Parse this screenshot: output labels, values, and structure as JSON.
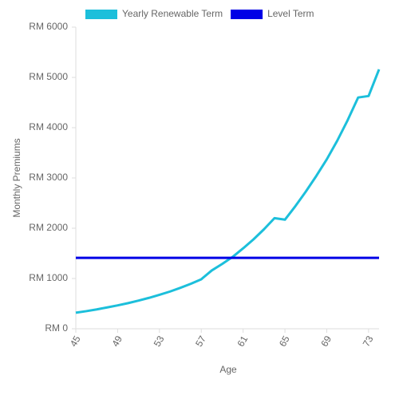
{
  "chart_data": {
    "type": "line",
    "x_label": "Age",
    "y_label": "Monthly Premiums",
    "x": [
      45,
      46,
      47,
      48,
      49,
      50,
      51,
      52,
      53,
      54,
      55,
      56,
      57,
      58,
      59,
      60,
      61,
      62,
      63,
      64,
      65,
      66,
      67,
      68,
      69,
      70,
      71,
      72,
      73,
      74
    ],
    "series": [
      {
        "name": "Yearly Renewable Term",
        "color": "#1cbfdb",
        "values": [
          320,
          350,
          385,
          425,
          465,
          510,
          560,
          615,
          675,
          740,
          815,
          895,
          985,
          1160,
          1290,
          1430,
          1600,
          1780,
          1980,
          2200,
          2170,
          2440,
          2730,
          3040,
          3370,
          3740,
          4150,
          4600,
          4630,
          5160
        ]
      },
      {
        "name": "Level Term",
        "color": "#0000e6",
        "values": [
          1410,
          1410,
          1410,
          1410,
          1410,
          1410,
          1410,
          1410,
          1410,
          1410,
          1410,
          1410,
          1410,
          1410,
          1410,
          1410,
          1410,
          1410,
          1410,
          1410,
          1410,
          1410,
          1410,
          1410,
          1410,
          1410,
          1410,
          1410,
          1410,
          1410
        ]
      }
    ],
    "xlim": [
      45,
      74
    ],
    "xticks": [
      45,
      49,
      53,
      57,
      61,
      65,
      69,
      73
    ],
    "ylim": [
      0,
      6000
    ],
    "yticks": [
      {
        "value": 0,
        "label": "RM 0"
      },
      {
        "value": 1000,
        "label": "RM 1000"
      },
      {
        "value": 2000,
        "label": "RM 2000"
      },
      {
        "value": 3000,
        "label": "RM 3000"
      },
      {
        "value": 4000,
        "label": "RM 4000"
      },
      {
        "value": 5000,
        "label": "RM 5000"
      },
      {
        "value": 6000,
        "label": "RM 6000"
      }
    ],
    "legend": "top"
  }
}
